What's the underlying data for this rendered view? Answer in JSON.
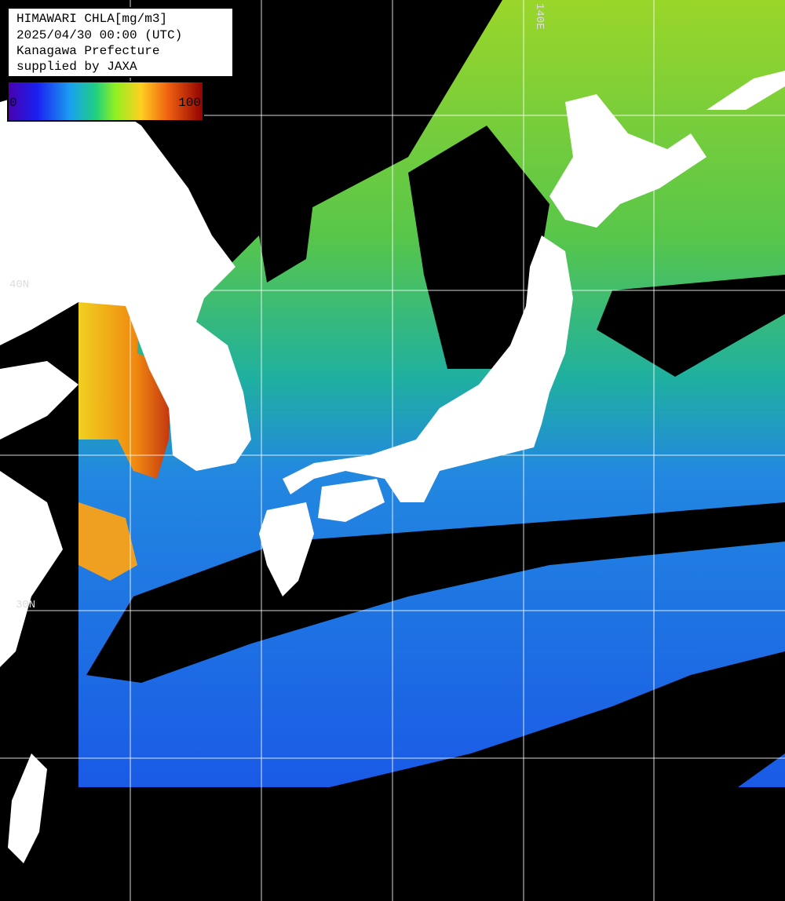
{
  "legend_box": {
    "lines": [
      "HIMAWARI CHLA[mg/m3]",
      "2025/04/30 00:00 (UTC)",
      "Kanagawa Prefecture",
      "supplied by JAXA"
    ]
  },
  "colorbar": {
    "min": 0,
    "max": 100
  },
  "grid_labels": {
    "lon": "140E",
    "lat": [
      "40N",
      "30N"
    ]
  }
}
